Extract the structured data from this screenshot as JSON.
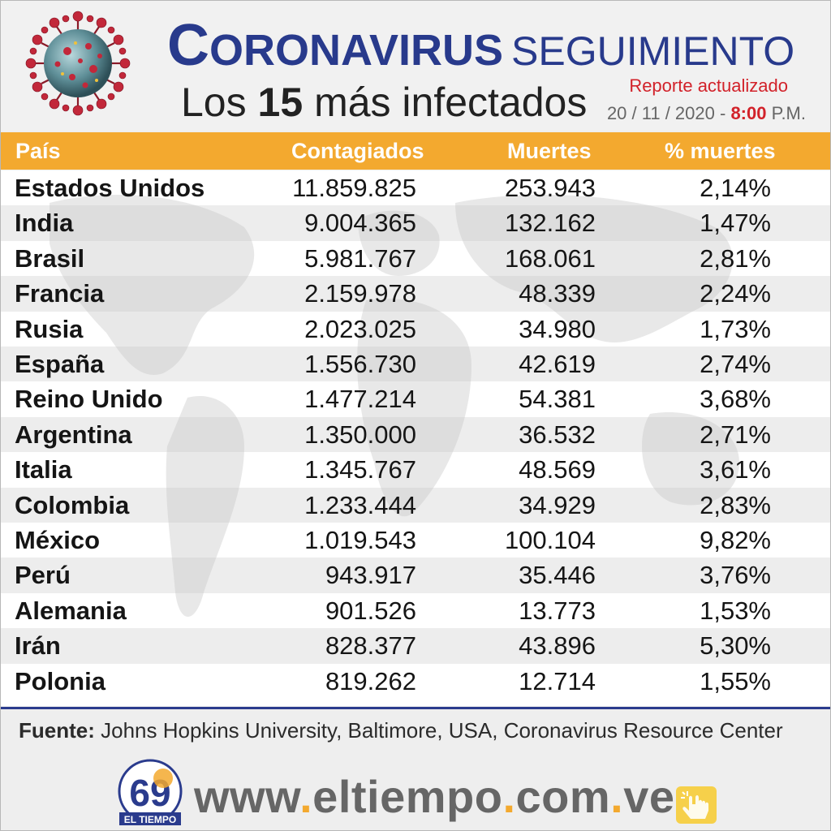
{
  "header": {
    "title_first": "C",
    "title_rest": "ORONAVIRUS",
    "title_second": "SEGUIMIENTO",
    "subtitle_prefix": "Los",
    "subtitle_number": "15",
    "subtitle_suffix": "más infectados",
    "report_label": "Reporte actualizado",
    "date": "20 / 11 / 2020 -",
    "time": "8:00",
    "ampm": "P.M."
  },
  "table": {
    "columns": [
      "País",
      "Contagiados",
      "Muertes",
      "% muertes"
    ],
    "rows": [
      [
        "Estados Unidos",
        "11.859.825",
        "253.943",
        "2,14%"
      ],
      [
        "India",
        "9.004.365",
        "132.162",
        "1,47%"
      ],
      [
        "Brasil",
        "5.981.767",
        "168.061",
        "2,81%"
      ],
      [
        "Francia",
        "2.159.978",
        "48.339",
        "2,24%"
      ],
      [
        "Rusia",
        "2.023.025",
        "34.980",
        "1,73%"
      ],
      [
        "España",
        "1.556.730",
        "42.619",
        "2,74%"
      ],
      [
        "Reino Unido",
        "1.477.214",
        "54.381",
        "3,68%"
      ],
      [
        "Argentina",
        "1.350.000",
        "36.532",
        "2,71%"
      ],
      [
        "Italia",
        "1.345.767",
        "48.569",
        "3,61%"
      ],
      [
        "Colombia",
        "1.233.444",
        "34.929",
        "2,83%"
      ],
      [
        "México",
        "1.019.543",
        "100.104",
        "9,82%"
      ],
      [
        "Perú",
        "943.917",
        "35.446",
        "3,76%"
      ],
      [
        "Alemania",
        "901.526",
        "13.773",
        "1,53%"
      ],
      [
        "Irán",
        "828.377",
        "43.896",
        "5,30%"
      ],
      [
        "Polonia",
        "819.262",
        "12.714",
        "1,55%"
      ]
    ]
  },
  "footer": {
    "source_label": "Fuente:",
    "source_text": " Johns Hopkins University, Baltimore, USA, Coronavirus Resource Center",
    "url_parts": [
      "www",
      ".",
      "eltiempo",
      ".",
      "com",
      ".",
      "ve"
    ],
    "logo_text": "EL TIEMPO",
    "logo_number": "69"
  },
  "colors": {
    "accent_orange": "#f3a92f",
    "title_blue": "#283a8c",
    "report_red": "#d2222a"
  }
}
